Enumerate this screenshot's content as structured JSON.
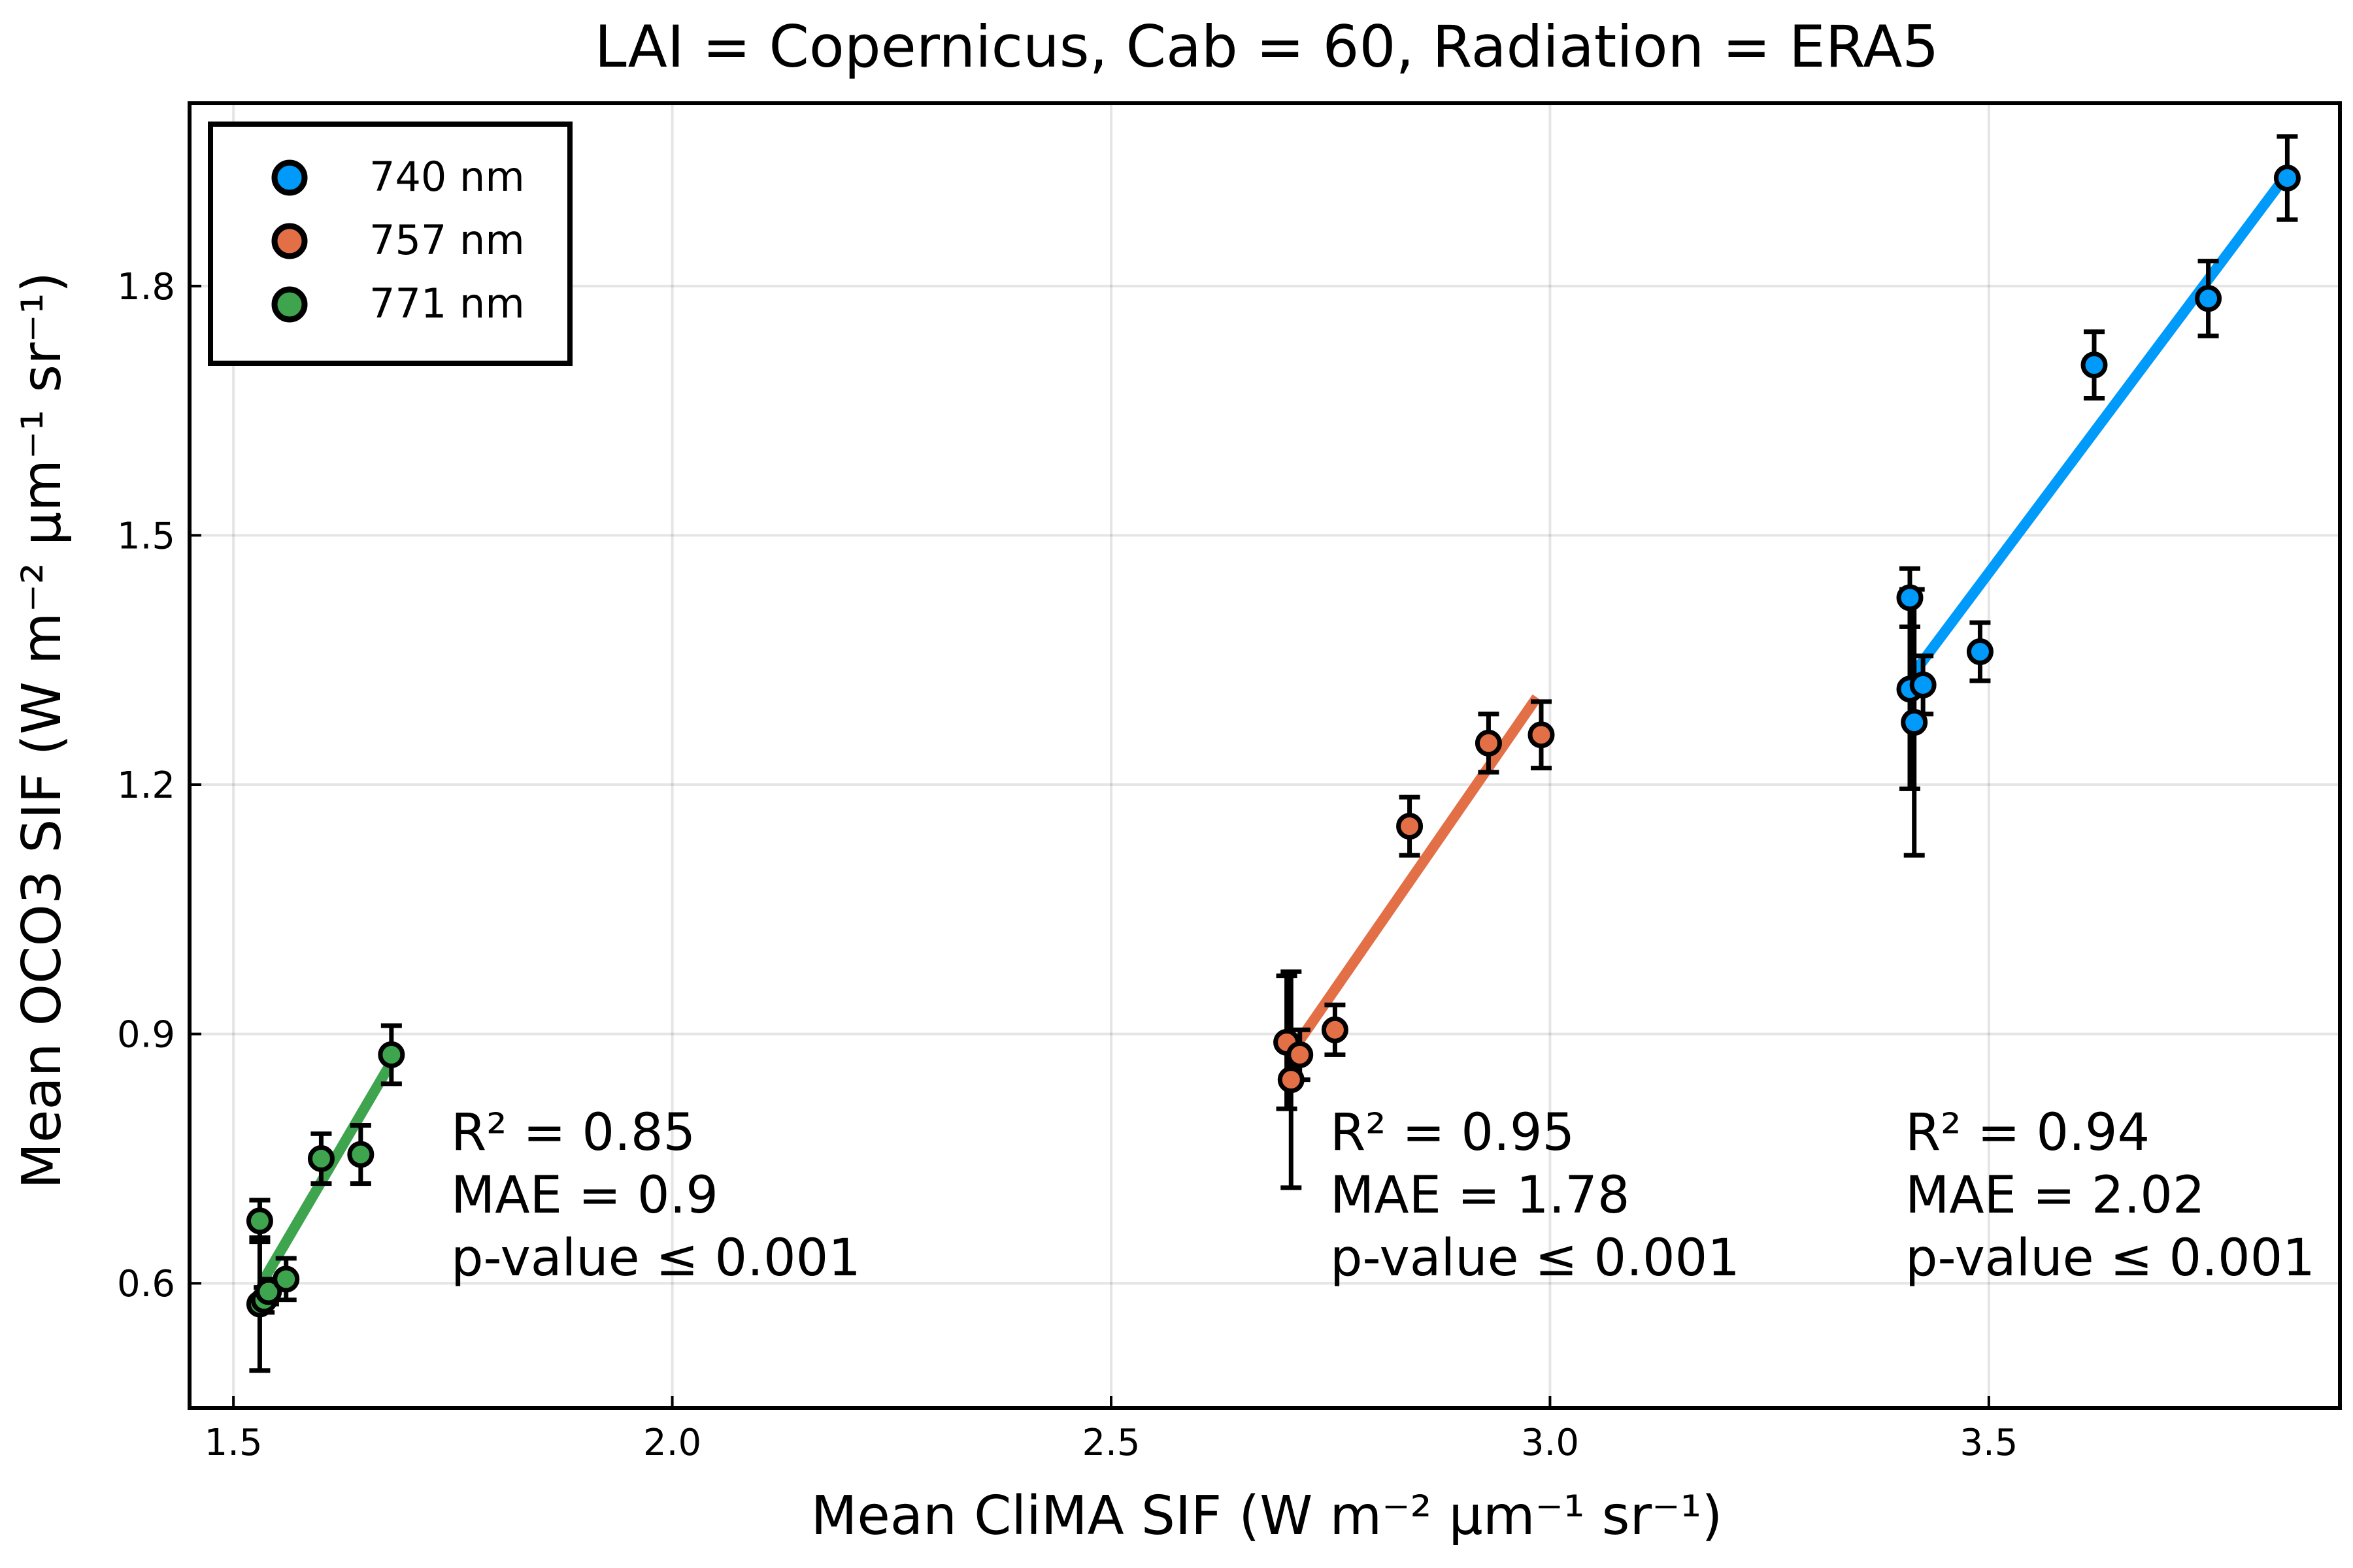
{
  "chart_data": {
    "type": "scatter",
    "title": "LAI = Copernicus, Cab = 60, Radiation = ERA5",
    "xlabel": "Mean CliMA SIF (W m⁻² μm⁻¹ sr⁻¹)",
    "ylabel": "Mean OCO3 SIF (W m⁻² μm⁻¹ sr⁻¹)",
    "xlim": [
      1.45,
      3.9
    ],
    "ylim": [
      0.45,
      2.02
    ],
    "xticks": [
      1.5,
      2.0,
      2.5,
      3.0,
      3.5
    ],
    "xtick_labels": [
      "1.5",
      "2.0",
      "2.5",
      "3.0",
      "3.5"
    ],
    "yticks": [
      0.6,
      0.9,
      1.2,
      1.5,
      1.8
    ],
    "ytick_labels": [
      "0.6",
      "0.9",
      "1.2",
      "1.5",
      "1.8"
    ],
    "grid": true,
    "legend_position": "top-left",
    "series": [
      {
        "name": "740 nm",
        "color": "#009AFA",
        "points": [
          {
            "x": 3.41,
            "y": 1.425,
            "err": 0.035
          },
          {
            "x": 3.41,
            "y": 1.315,
            "err": 0.12
          },
          {
            "x": 3.415,
            "y": 1.275,
            "err": 0.16
          },
          {
            "x": 3.425,
            "y": 1.32,
            "err": 0.035
          },
          {
            "x": 3.49,
            "y": 1.36,
            "err": 0.035
          },
          {
            "x": 3.62,
            "y": 1.705,
            "err": 0.04
          },
          {
            "x": 3.75,
            "y": 1.785,
            "err": 0.045
          },
          {
            "x": 3.84,
            "y": 1.93,
            "err": 0.05
          }
        ],
        "fit": {
          "x": [
            3.415,
            3.84
          ],
          "y": [
            1.335,
            1.935
          ]
        },
        "annotation": [
          "R² = 0.94",
          "MAE = 2.02",
          "p-value ≤ 0.001"
        ]
      },
      {
        "name": "757 nm",
        "color": "#E36F47",
        "points": [
          {
            "x": 2.7,
            "y": 0.89,
            "err": 0.08
          },
          {
            "x": 2.705,
            "y": 0.845,
            "err": 0.13
          },
          {
            "x": 2.715,
            "y": 0.875,
            "err": 0.03
          },
          {
            "x": 2.755,
            "y": 0.905,
            "err": 0.03
          },
          {
            "x": 2.84,
            "y": 1.15,
            "err": 0.035
          },
          {
            "x": 2.93,
            "y": 1.25,
            "err": 0.035
          },
          {
            "x": 2.99,
            "y": 1.26,
            "err": 0.04
          }
        ],
        "fit": {
          "x": [
            2.71,
            2.985
          ],
          "y": [
            0.885,
            1.305
          ]
        },
        "annotation": [
          "R² = 0.95",
          "MAE = 1.78",
          "p-value ≤ 0.001"
        ]
      },
      {
        "name": "771 nm",
        "color": "#3EA44E",
        "points": [
          {
            "x": 1.53,
            "y": 0.675,
            "err": 0.025
          },
          {
            "x": 1.53,
            "y": 0.575,
            "err": 0.08
          },
          {
            "x": 1.535,
            "y": 0.58,
            "err": 0.015
          },
          {
            "x": 1.54,
            "y": 0.59,
            "err": 0.015
          },
          {
            "x": 1.56,
            "y": 0.605,
            "err": 0.025
          },
          {
            "x": 1.6,
            "y": 0.75,
            "err": 0.03
          },
          {
            "x": 1.645,
            "y": 0.755,
            "err": 0.035
          },
          {
            "x": 1.68,
            "y": 0.875,
            "err": 0.035
          }
        ],
        "fit": {
          "x": [
            1.535,
            1.685
          ],
          "y": [
            0.605,
            0.875
          ]
        },
        "annotation": [
          "R² = 0.85",
          "MAE = 0.9",
          "p-value ≤ 0.001"
        ]
      }
    ]
  }
}
